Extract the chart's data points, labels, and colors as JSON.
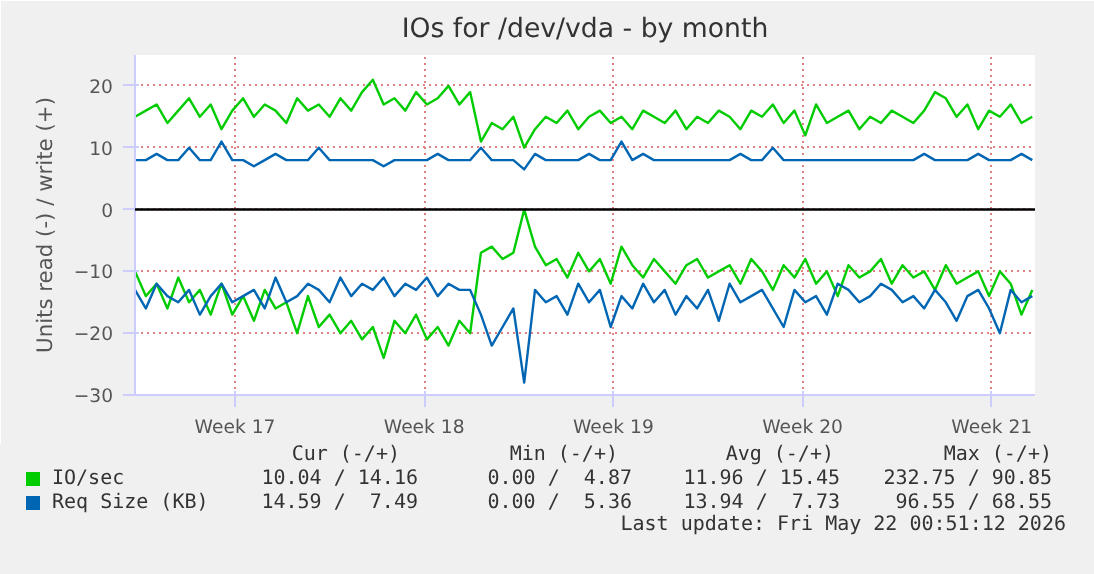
{
  "chart_data": {
    "type": "line",
    "title": "IOs for /dev/vda - by month",
    "ylabel": "Units read (-) / write (+)",
    "x": [
      "2026-04-18T19:12",
      "2026-04-19T04:48",
      "2026-04-19T14:24",
      "2026-04-20T00:00",
      "2026-04-20T09:36",
      "2026-04-20T19:12",
      "2026-04-21T04:48",
      "2026-04-21T14:24",
      "2026-04-22T00:00",
      "2026-04-22T09:36",
      "2026-04-22T19:12",
      "2026-04-23T04:48",
      "2026-04-23T14:24",
      "2026-04-24T00:00",
      "2026-04-24T09:36",
      "2026-04-24T19:12",
      "2026-04-25T04:48",
      "2026-04-25T14:24",
      "2026-04-26T00:00",
      "2026-04-26T09:36",
      "2026-04-26T19:12",
      "2026-04-27T04:48",
      "2026-04-27T14:24",
      "2026-04-28T00:00",
      "2026-04-28T09:36",
      "2026-04-28T19:12",
      "2026-04-29T04:48",
      "2026-04-29T14:24",
      "2026-04-30T00:00",
      "2026-04-30T09:36",
      "2026-04-30T19:12",
      "2026-05-01T04:48",
      "2026-05-01T14:24",
      "2026-05-02T00:00",
      "2026-05-02T09:36",
      "2026-05-02T19:12",
      "2026-05-03T04:48",
      "2026-05-03T14:24",
      "2026-05-04T00:00",
      "2026-05-04T09:36",
      "2026-05-04T19:12",
      "2026-05-05T04:48",
      "2026-05-05T14:24",
      "2026-05-06T00:00",
      "2026-05-06T09:36",
      "2026-05-06T19:12",
      "2026-05-07T04:48",
      "2026-05-07T14:24",
      "2026-05-08T00:00",
      "2026-05-08T09:36",
      "2026-05-08T19:12",
      "2026-05-09T04:48",
      "2026-05-09T14:24",
      "2026-05-10T00:00",
      "2026-05-10T09:36",
      "2026-05-10T19:12",
      "2026-05-11T04:48",
      "2026-05-11T14:24",
      "2026-05-12T00:00",
      "2026-05-12T09:36",
      "2026-05-12T19:12",
      "2026-05-13T04:48",
      "2026-05-13T14:24",
      "2026-05-14T00:00",
      "2026-05-14T09:36",
      "2026-05-14T19:12",
      "2026-05-15T04:48",
      "2026-05-15T14:24",
      "2026-05-16T00:00",
      "2026-05-16T09:36",
      "2026-05-16T19:12",
      "2026-05-17T04:48",
      "2026-05-17T14:24",
      "2026-05-18T00:00",
      "2026-05-18T09:36",
      "2026-05-18T19:12",
      "2026-05-19T04:48",
      "2026-05-19T14:24",
      "2026-05-20T00:00",
      "2026-05-20T09:36",
      "2026-05-20T19:12",
      "2026-05-21T04:48",
      "2026-05-21T14:24",
      "2026-05-22T00:00"
    ],
    "series": [
      {
        "name": "IO/sec",
        "color": "#00cc00",
        "values": [
          15,
          16,
          17,
          14,
          16,
          18,
          15,
          17,
          13,
          16,
          18,
          15,
          17,
          16,
          14,
          18,
          16,
          17,
          15,
          18,
          16,
          19,
          21,
          17,
          18,
          16,
          19,
          17,
          18,
          20,
          17,
          19,
          11,
          14,
          13,
          15,
          10,
          13,
          15,
          14,
          16,
          13,
          15,
          16,
          14,
          15,
          13,
          16,
          15,
          14,
          16,
          13,
          15,
          14,
          16,
          15,
          13,
          16,
          15,
          17,
          14,
          16,
          12,
          17,
          14,
          15,
          16,
          13,
          15,
          14,
          16,
          15,
          14,
          16,
          19,
          18,
          15,
          17,
          13,
          16,
          15,
          17,
          14,
          15
        ]
      },
      {
        "name": "Req Size (KB)",
        "color": "#0066b3",
        "values": [
          8,
          8,
          9,
          8,
          8,
          10,
          8,
          8,
          11,
          8,
          8,
          7,
          8,
          9,
          8,
          8,
          8,
          10,
          8,
          8,
          8,
          8,
          8,
          7,
          8,
          8,
          8,
          8,
          9,
          8,
          8,
          8,
          10,
          8,
          8,
          8,
          6.5,
          9,
          8,
          8,
          8,
          8,
          9,
          8,
          8,
          11,
          8,
          9,
          8,
          8,
          8,
          8,
          8,
          8,
          8,
          8,
          9,
          8,
          8,
          10,
          8,
          8,
          8,
          8,
          8,
          8,
          8,
          8,
          8,
          8,
          8,
          8,
          8,
          9,
          8,
          8,
          8,
          8,
          9,
          8,
          8,
          8,
          9,
          8
        ]
      },
      {
        "color": "#00cc00",
        "values": [
          -10,
          -14,
          -12,
          -16,
          -11,
          -15,
          -13,
          -17,
          -12,
          -17,
          -14,
          -18,
          -13,
          -16,
          -15,
          -20,
          -14,
          -19,
          -17,
          -20,
          -18,
          -21,
          -19,
          -24,
          -18,
          -20,
          -17,
          -21,
          -19,
          -22,
          -18,
          -20,
          -7,
          -6,
          -8,
          -7,
          0,
          -6,
          -9,
          -8,
          -11,
          -7,
          -10,
          -8,
          -12,
          -6,
          -9,
          -11,
          -8,
          -10,
          -12,
          -9,
          -8,
          -11,
          -10,
          -9,
          -12,
          -8,
          -10,
          -13,
          -9,
          -11,
          -8,
          -12,
          -10,
          -14,
          -9,
          -11,
          -10,
          -8,
          -12,
          -9,
          -11,
          -10,
          -13,
          -9,
          -12,
          -11,
          -10,
          -14,
          -10,
          -12,
          -17,
          -13
        ]
      },
      {
        "color": "#0066b3",
        "values": [
          -13,
          -16,
          -12,
          -14,
          -15,
          -13,
          -17,
          -14,
          -12,
          -15,
          -14,
          -13,
          -16,
          -11,
          -15,
          -14,
          -12,
          -13,
          -15,
          -11,
          -14,
          -12,
          -13,
          -11,
          -14,
          -12,
          -13,
          -11,
          -14,
          -12,
          -13,
          -13,
          -17,
          -22,
          -19,
          -16,
          -28,
          -13,
          -15,
          -14,
          -17,
          -12,
          -15,
          -13,
          -19,
          -14,
          -16,
          -12,
          -15,
          -13,
          -17,
          -14,
          -16,
          -13,
          -18,
          -12,
          -15,
          -14,
          -13,
          -16,
          -19,
          -13,
          -15,
          -14,
          -17,
          -12,
          -13,
          -15,
          -14,
          -12,
          -13,
          -15,
          -14,
          -16,
          -13,
          -15,
          -18,
          -14,
          -13,
          -16,
          -20,
          -13,
          -15,
          -14
        ]
      }
    ],
    "xlim": [
      "2026-04-18T19:12",
      "2026-05-22T02:24"
    ],
    "ylim": [
      -30,
      25
    ],
    "yticks": [
      -30,
      -20,
      -10,
      0,
      10,
      20
    ],
    "xticks": [
      {
        "value": "2026-04-22T12:00",
        "label": "Week 17"
      },
      {
        "value": "2026-04-29T12:00",
        "label": "Week 18"
      },
      {
        "value": "2026-05-06T12:00",
        "label": "Week 19"
      },
      {
        "value": "2026-05-13T12:00",
        "label": "Week 20"
      },
      {
        "value": "2026-05-20T12:00",
        "label": "Week 21"
      }
    ],
    "ref_lines": [
      {
        "axis": "y",
        "value": 0,
        "color": "#000000"
      }
    ],
    "grid": true,
    "legend": "bottom left",
    "line_style": "solid",
    "annotations": [
      "Cur (-/+)",
      "Min (-/+)",
      "Avg (-/+)",
      "Max (-/+)",
      "10.04 / 14.16",
      "0.00 /  4.87",
      "11.96 / 15.45",
      "232.75 / 90.85",
      "14.59 /  7.49",
      "0.00 /  5.36",
      "13.94 /  7.73",
      "96.55 / 68.55",
      "Last update: Fri May 22 00:51:12 2026"
    ]
  }
}
